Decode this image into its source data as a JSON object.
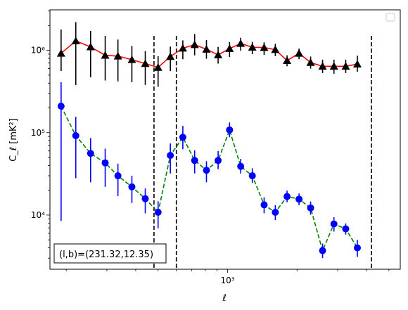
{
  "chart_data": {
    "type": "scatter",
    "title": "",
    "xlabel": "ℓ",
    "ylabel": "C_ℓ [mK²]",
    "xscale": "log",
    "yscale": "log",
    "xlim": [
      170,
      5600
    ],
    "ylim": [
      2200,
      3100000
    ],
    "x_tick_labels": [
      "10³"
    ],
    "y_tick_labels": [
      "10⁴",
      "10⁵",
      "10⁶"
    ],
    "grid": false,
    "legend": "top-right, empty",
    "vertical_lines_x": [
      480,
      600,
      4200
    ],
    "annotation": "(l,b)=(231.32,12.35)",
    "series": [
      {
        "color": "#000000",
        "line_color": "#ff0000",
        "marker": "triangle",
        "linestyle": "solid",
        "points": [
          {
            "x": 190,
            "y": 920000,
            "err": [
              560000,
              1790000
            ]
          },
          {
            "x": 220,
            "y": 1300000,
            "err": [
              380000,
              2200000
            ]
          },
          {
            "x": 255,
            "y": 1100000,
            "err": [
              470000,
              1720000
            ]
          },
          {
            "x": 295,
            "y": 870000,
            "err": [
              430000,
              1500000
            ]
          },
          {
            "x": 335,
            "y": 850000,
            "err": [
              420000,
              1350000
            ]
          },
          {
            "x": 385,
            "y": 770000,
            "err": [
              410000,
              1130000
            ]
          },
          {
            "x": 440,
            "y": 690000,
            "err": [
              380000,
              980000
            ]
          },
          {
            "x": 500,
            "y": 620000,
            "err": [
              360000,
              850000
            ]
          },
          {
            "x": 565,
            "y": 840000,
            "err": [
              560000,
              1110000
            ]
          },
          {
            "x": 640,
            "y": 1060000,
            "err": [
              780000,
              1320000
            ]
          },
          {
            "x": 720,
            "y": 1170000,
            "err": [
              870000,
              1580000
            ]
          },
          {
            "x": 810,
            "y": 1030000,
            "err": [
              790000,
              1330000
            ]
          },
          {
            "x": 910,
            "y": 880000,
            "err": [
              690000,
              1100000
            ]
          },
          {
            "x": 1020,
            "y": 1050000,
            "err": [
              830000,
              1260000
            ]
          },
          {
            "x": 1140,
            "y": 1210000,
            "err": [
              990000,
              1420000
            ]
          },
          {
            "x": 1280,
            "y": 1090000,
            "err": [
              900000,
              1270000
            ]
          },
          {
            "x": 1440,
            "y": 1080000,
            "err": [
              880000,
              1250000
            ]
          },
          {
            "x": 1610,
            "y": 1020000,
            "err": [
              850000,
              1200000
            ]
          },
          {
            "x": 1810,
            "y": 750000,
            "err": [
              640000,
              870000
            ]
          },
          {
            "x": 2040,
            "y": 920000,
            "err": [
              780000,
              1050000
            ]
          },
          {
            "x": 2290,
            "y": 710000,
            "err": [
              600000,
              840000
            ]
          },
          {
            "x": 2580,
            "y": 640000,
            "err": [
              530000,
              770000
            ]
          },
          {
            "x": 2890,
            "y": 640000,
            "err": [
              520000,
              770000
            ]
          },
          {
            "x": 3250,
            "y": 640000,
            "err": [
              530000,
              770000
            ]
          },
          {
            "x": 3650,
            "y": 680000,
            "err": [
              550000,
              860000
            ]
          }
        ]
      },
      {
        "color": "#0000ff",
        "line_color": "#008000",
        "marker": "circle",
        "linestyle": "dashed",
        "points": [
          {
            "x": 190,
            "y": 210000,
            "err": [
              8500,
              410000
            ]
          },
          {
            "x": 220,
            "y": 92000,
            "err": [
              28000,
              156000
            ]
          },
          {
            "x": 255,
            "y": 56000,
            "err": [
              25000,
              86000
            ]
          },
          {
            "x": 295,
            "y": 43000,
            "err": [
              22000,
              64000
            ]
          },
          {
            "x": 335,
            "y": 30000,
            "err": [
              17000,
              42000
            ]
          },
          {
            "x": 385,
            "y": 22000,
            "err": [
              14000,
              30000
            ]
          },
          {
            "x": 440,
            "y": 15800,
            "err": [
              10500,
              21000
            ]
          },
          {
            "x": 500,
            "y": 10800,
            "err": [
              6900,
              14700
            ]
          },
          {
            "x": 565,
            "y": 53000,
            "err": [
              32000,
              74000
            ]
          },
          {
            "x": 640,
            "y": 88000,
            "err": [
              63000,
              121000
            ]
          },
          {
            "x": 720,
            "y": 46000,
            "err": [
              32000,
              61000
            ]
          },
          {
            "x": 810,
            "y": 35000,
            "err": [
              25000,
              45000
            ]
          },
          {
            "x": 910,
            "y": 46000,
            "err": [
              36000,
              60000
            ]
          },
          {
            "x": 1020,
            "y": 108000,
            "err": [
              88000,
              133000
            ]
          },
          {
            "x": 1140,
            "y": 39000,
            "err": [
              32000,
              48000
            ]
          },
          {
            "x": 1280,
            "y": 30000,
            "err": [
              24500,
              37000
            ]
          },
          {
            "x": 1440,
            "y": 13300,
            "err": [
              10500,
              16400
            ]
          },
          {
            "x": 1610,
            "y": 10800,
            "err": [
              8700,
              13200
            ]
          },
          {
            "x": 1810,
            "y": 16800,
            "err": [
              14300,
              19800
            ]
          },
          {
            "x": 2040,
            "y": 15600,
            "err": [
              13200,
              18300
            ]
          },
          {
            "x": 2290,
            "y": 12200,
            "err": [
              10100,
              14600
            ]
          },
          {
            "x": 2580,
            "y": 3700,
            "err": [
              3000,
              4500
            ]
          },
          {
            "x": 2890,
            "y": 7800,
            "err": [
              6300,
              9400
            ]
          },
          {
            "x": 3250,
            "y": 6800,
            "err": [
              5800,
              7900
            ]
          },
          {
            "x": 3650,
            "y": 4000,
            "err": [
              3100,
              5000
            ]
          }
        ]
      }
    ]
  }
}
